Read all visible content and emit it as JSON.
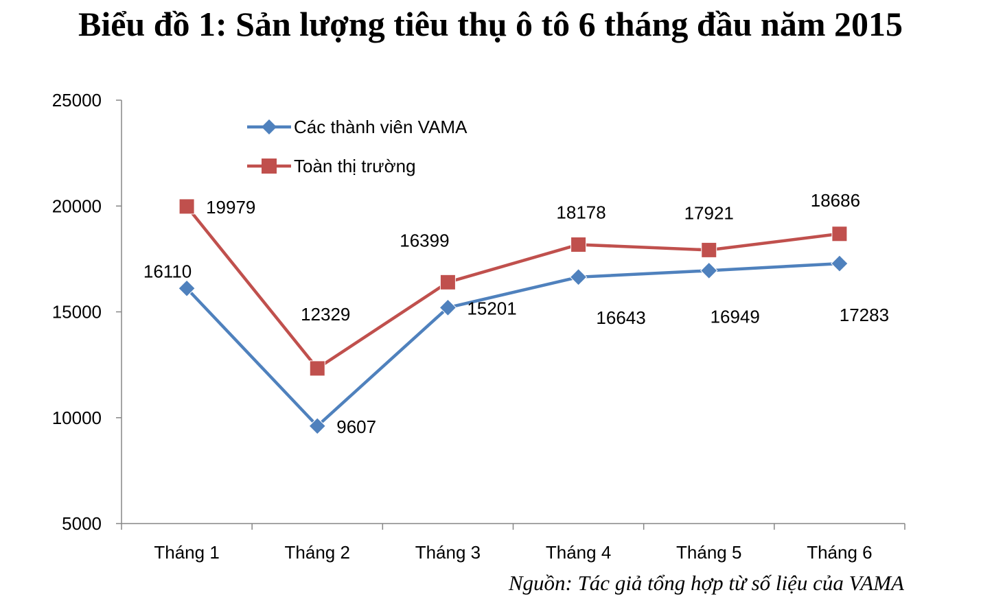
{
  "title": "Biểu đồ 1: Sản lượng tiêu thụ ô tô 6 tháng đầu năm 2015",
  "source": "Nguồn: Tác giả tổng hợp từ số liệu của VAMA",
  "chart_data": {
    "type": "line",
    "title": "Biểu đồ 1: Sản lượng tiêu thụ ô tô 6 tháng đầu năm 2015",
    "xlabel": "",
    "ylabel": "",
    "categories": [
      "Tháng 1",
      "Tháng 2",
      "Tháng 3",
      "Tháng 4",
      "Tháng 5",
      "Tháng 6"
    ],
    "ylim": [
      5000,
      25000
    ],
    "yticks": [
      25000,
      20000,
      15000,
      10000,
      5000
    ],
    "grid": false,
    "legend": "top-left",
    "series": [
      {
        "name": "Các thành viên VAMA",
        "values": [
          16110,
          9607,
          15201,
          16643,
          16949,
          17283
        ],
        "color": "#4f81bd",
        "marker": "diamond"
      },
      {
        "name": "Toàn thị trường",
        "values": [
          19979,
          12329,
          16399,
          18178,
          17921,
          18686
        ],
        "color": "#c0504d",
        "marker": "square"
      }
    ]
  }
}
